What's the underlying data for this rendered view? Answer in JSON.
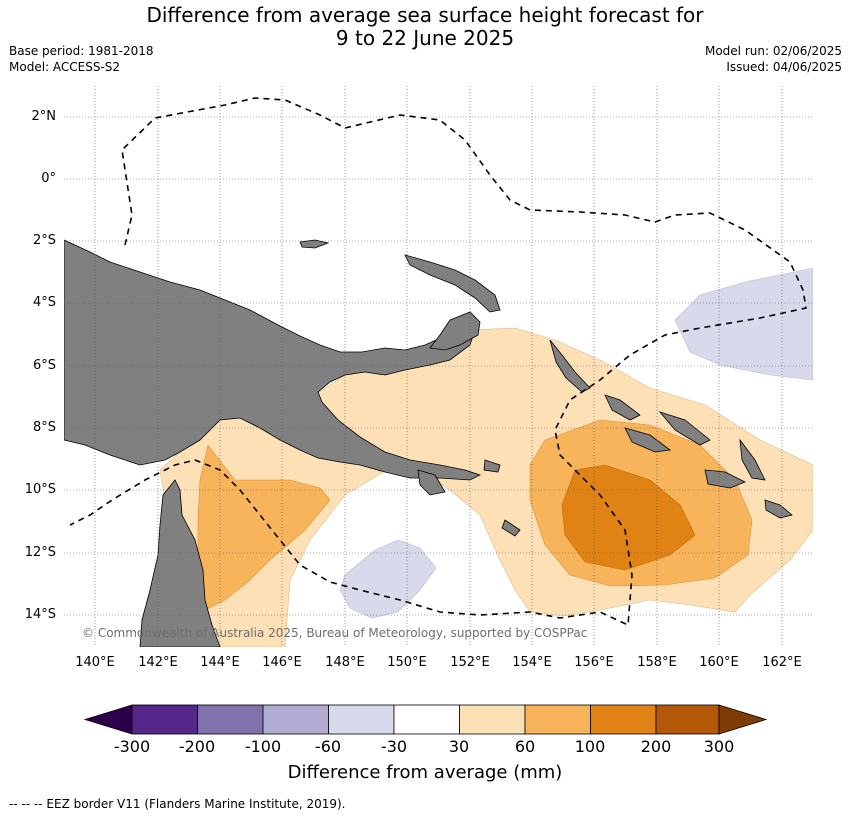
{
  "title_line1": "Difference from average sea surface height forecast for",
  "title_line2": "9 to 22 June 2025",
  "meta": {
    "base_period": "Base period: 1981-2018",
    "model": "Model: ACCESS-S2",
    "model_run": "Model run: 02/06/2025",
    "issued": "Issued: 04/06/2025"
  },
  "map": {
    "lat_labels": [
      "2°N",
      "0°",
      "2°S",
      "4°S",
      "6°S",
      "8°S",
      "10°S",
      "12°S",
      "14°S"
    ],
    "lon_labels": [
      "140°E",
      "142°E",
      "144°E",
      "146°E",
      "148°E",
      "150°E",
      "152°E",
      "154°E",
      "156°E",
      "158°E",
      "160°E",
      "162°E"
    ],
    "copyright": "© Commonwealth of Australia 2025, Bureau of Meteorology, supported by COSPPac",
    "land_color": "#808080",
    "gridlines": true
  },
  "colorbar": {
    "colors": [
      "#2d004b",
      "#542788",
      "#8073ac",
      "#b2abd2",
      "#d8daeb",
      "#ffffff",
      "#fee0b6",
      "#f8b45a",
      "#e08214",
      "#b35806",
      "#7f3b08"
    ],
    "tick_labels": [
      "-300",
      "-200",
      "-100",
      "-60",
      "-30",
      "30",
      "60",
      "100",
      "200",
      "300"
    ],
    "title": "Difference from average (mm)"
  },
  "legend_note": "--  --  -- EEZ border V11 (Flanders Marine Institute, 2019)."
}
